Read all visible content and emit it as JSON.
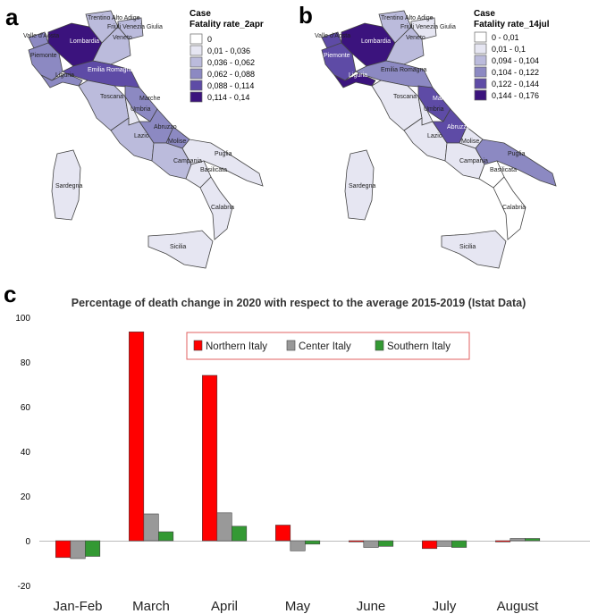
{
  "panel_a": {
    "letter": "a",
    "legend_title_line1": "Case",
    "legend_title_line2": "Fatality rate_2apr",
    "legend_items": [
      {
        "label": "0",
        "color": "#ffffff"
      },
      {
        "label": "0,01 - 0,036",
        "color": "#e6e6f2"
      },
      {
        "label": "0,036 - 0,062",
        "color": "#bbbbdc"
      },
      {
        "label": "0,062 - 0,088",
        "color": "#8c89c2"
      },
      {
        "label": "0,088 - 0,114",
        "color": "#5e4ba6"
      },
      {
        "label": "0,114 - 0,14",
        "color": "#3b137d"
      }
    ],
    "region_labels": [
      "Trentino Alto Adige",
      "Friuli Venezia Giulia",
      "Valle d'Aosta",
      "Lombardia",
      "Veneto",
      "Piemonte",
      "Emilia Romagna",
      "Liguria",
      "Toscana",
      "Marche",
      "Umbria",
      "Abruzzo",
      "Lazio",
      "Molise",
      "Puglia",
      "Campania",
      "Basilicata",
      "Sardegna",
      "Calabria",
      "Sicilia"
    ]
  },
  "panel_b": {
    "letter": "b",
    "legend_title_line1": "Case",
    "legend_title_line2": "Fatality rate_14jul",
    "legend_items": [
      {
        "label": "0 - 0,01",
        "color": "#ffffff"
      },
      {
        "label": "0,01 - 0,1",
        "color": "#e6e6f2"
      },
      {
        "label": "0,094 - 0,104",
        "color": "#bbbbdc"
      },
      {
        "label": "0,104 - 0,122",
        "color": "#8c89c2"
      },
      {
        "label": "0,122 - 0,144",
        "color": "#5e4ba6"
      },
      {
        "label": "0,144 - 0,176",
        "color": "#3b137d"
      }
    ],
    "region_labels": [
      "Trentino Alto Adige",
      "Friuli Venezia Giulia",
      "Valle d'Aosta",
      "Lombardia",
      "Veneto",
      "Piemonte",
      "Emilia Romagna",
      "Liguria",
      "Toscana",
      "Marche",
      "Umbria",
      "Abruzzo",
      "Lazio",
      "Molise",
      "Puglia",
      "Campania",
      "Basilicata",
      "Sardegna",
      "Calabria",
      "Sicilia"
    ]
  },
  "panel_c": {
    "letter": "c"
  },
  "chart_data": {
    "type": "bar",
    "title": "Percentage of death change in 2020 with respect to the average 2015-2019 (Istat Data)",
    "categories": [
      "Jan-Feb",
      "March",
      "April",
      "May",
      "June",
      "July",
      "August"
    ],
    "series": [
      {
        "name": "Northern Italy",
        "color": "#ff0000",
        "values": [
          -7.5,
          93.5,
          74,
          7,
          -0.5,
          -3.5,
          -0.5
        ]
      },
      {
        "name": "Center Italy",
        "color": "#999999",
        "values": [
          -8,
          12,
          12.5,
          -4.5,
          -3,
          -2.5,
          1
        ]
      },
      {
        "name": "Southern Italy",
        "color": "#339933",
        "values": [
          -7,
          4,
          6.5,
          -1.5,
          -2.5,
          -3,
          1
        ]
      }
    ],
    "ylim": [
      -20,
      100
    ],
    "yticks": [
      "100",
      "80",
      "60",
      "40",
      "20",
      "0",
      "-20"
    ],
    "ytick_values": [
      100,
      80,
      60,
      40,
      20,
      0,
      -20
    ],
    "xlabel": "",
    "ylabel": "",
    "grid": false,
    "legend_position": "top-center"
  }
}
